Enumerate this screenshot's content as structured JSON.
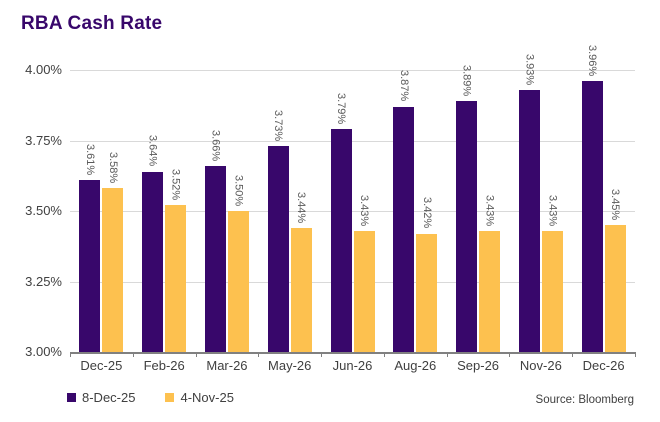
{
  "header": {
    "title": "RBA Cash Rate"
  },
  "footer": {
    "source": "Source: Bloomberg"
  },
  "chart_data": {
    "type": "bar",
    "title": "RBA Cash Rate",
    "categories": [
      "Dec-25",
      "Feb-26",
      "Mar-26",
      "May-26",
      "Jun-26",
      "Aug-26",
      "Sep-26",
      "Nov-26",
      "Dec-26"
    ],
    "series": [
      {
        "name": "8-Dec-25",
        "color": "#38076B",
        "values": [
          3.61,
          3.64,
          3.66,
          3.73,
          3.79,
          3.87,
          3.89,
          3.93,
          3.96
        ]
      },
      {
        "name": "4-Nov-25",
        "color": "#FDC14F",
        "values": [
          3.58,
          3.52,
          3.5,
          3.44,
          3.43,
          3.42,
          3.43,
          3.43,
          3.45
        ]
      }
    ],
    "ylim": [
      3.0,
      4.0
    ],
    "ytick_labels": [
      "4.00%",
      "3.75%",
      "3.50%",
      "3.25%",
      "3.00%"
    ],
    "value_label_suffix": "%",
    "value_label_decimals": 2,
    "data_label_rotation": 90,
    "grid": true,
    "legend_position": "bottom-left"
  },
  "style": {
    "title_color": "#38076B",
    "gridline_color": "#D9D9D9",
    "axis_line_color": "#808080",
    "data_label_color": "#595959",
    "axis_label_color": "#404040",
    "source_color": "#3F3F3F",
    "background": "#FFFFFF"
  }
}
